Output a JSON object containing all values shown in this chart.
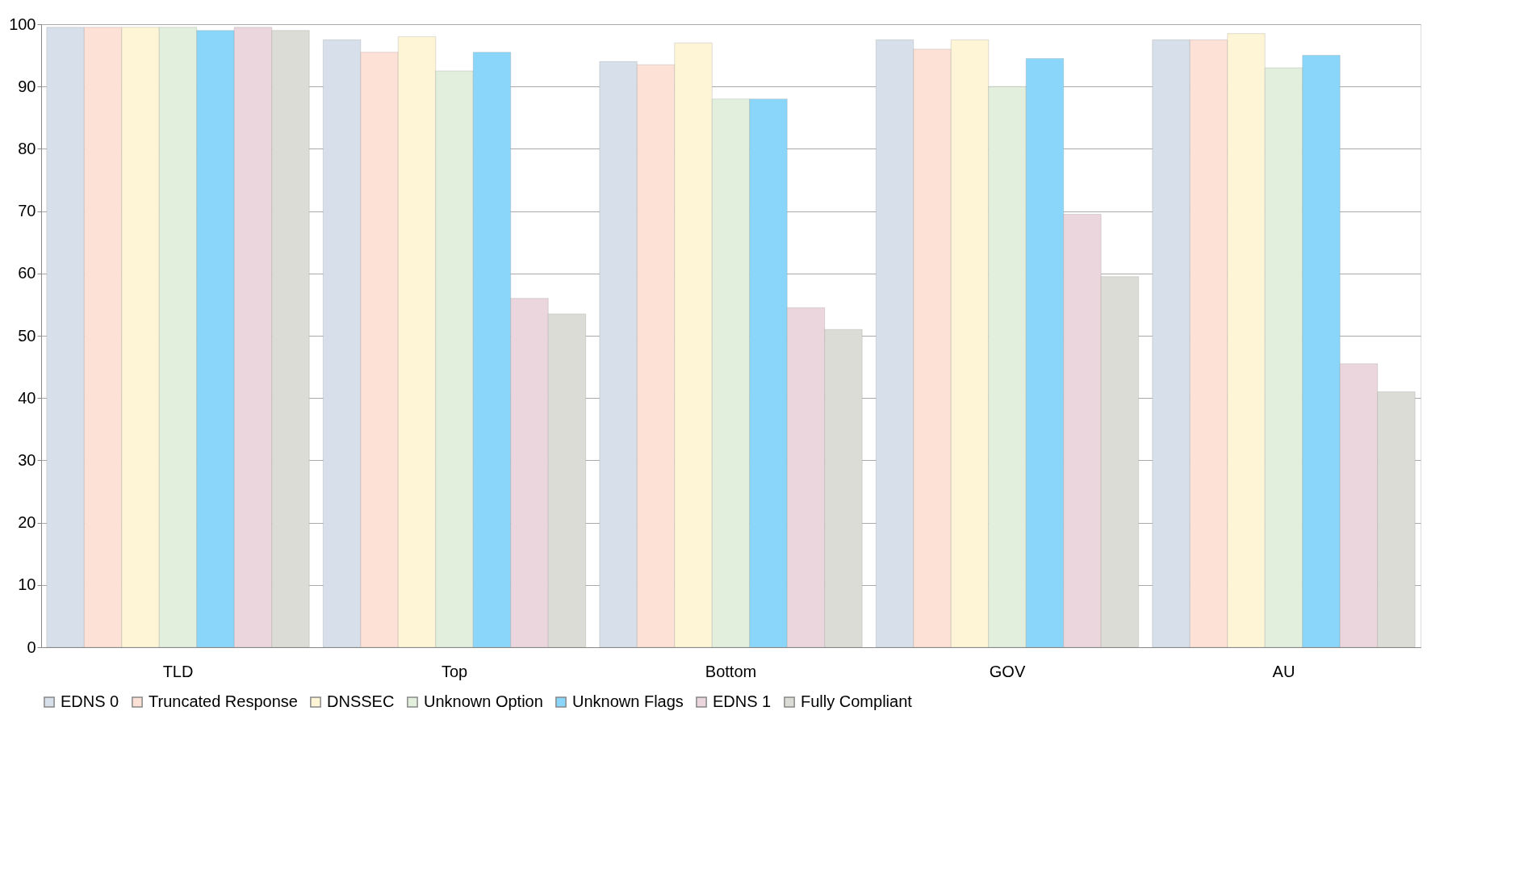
{
  "chart_data": {
    "type": "bar",
    "categories": [
      "TLD",
      "Top",
      "Bottom",
      "GOV",
      "AU"
    ],
    "series": [
      {
        "name": "EDNS 0",
        "color": "#d6dfea",
        "values": [
          99.5,
          97.5,
          94,
          97.5,
          97.5
        ]
      },
      {
        "name": "Truncated Response",
        "color": "#fde0d6",
        "values": [
          99.5,
          95.5,
          93.5,
          96,
          97.5
        ]
      },
      {
        "name": "DNSSEC",
        "color": "#fdf5d6",
        "values": [
          99.5,
          98,
          97,
          97.5,
          98.5
        ]
      },
      {
        "name": "Unknown Option",
        "color": "#e2efdc",
        "values": [
          99.5,
          92.5,
          88,
          90,
          93
        ]
      },
      {
        "name": "Unknown Flags",
        "color": "#8ad6fa",
        "values": [
          99,
          95.5,
          88,
          94.5,
          95
        ]
      },
      {
        "name": "EDNS 1",
        "color": "#ead6dc",
        "values": [
          99.5,
          56,
          54.5,
          69.5,
          45.5
        ]
      },
      {
        "name": "Fully Compliant",
        "color": "#dcdcd6",
        "values": [
          99,
          53.5,
          51,
          59.5,
          41
        ]
      }
    ],
    "ylim": [
      0,
      100
    ],
    "yticks": [
      0,
      10,
      20,
      30,
      40,
      50,
      60,
      70,
      80,
      90,
      100
    ],
    "grid": "y",
    "legend": "bottom"
  }
}
